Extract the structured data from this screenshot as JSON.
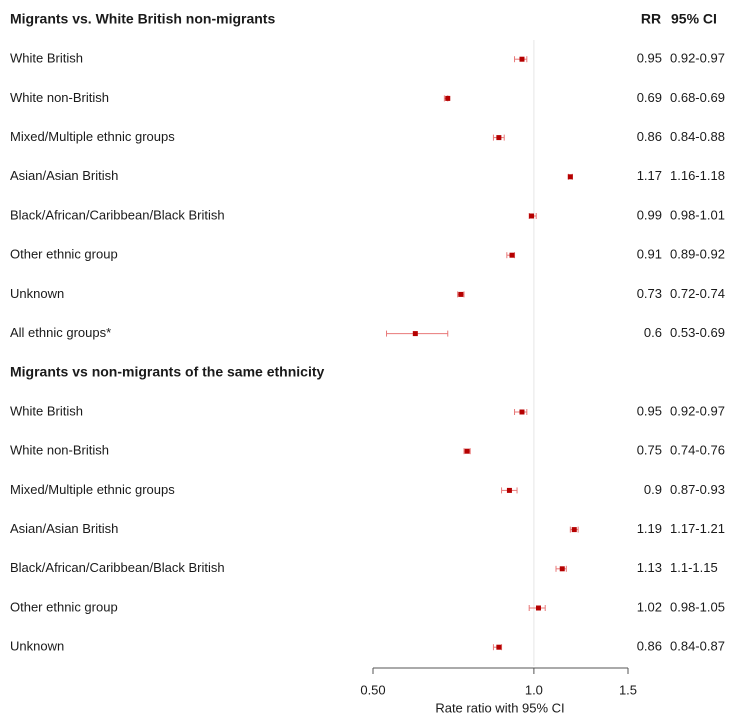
{
  "chart_data": {
    "type": "forest",
    "column_headers": [
      "RR",
      "95% CI"
    ],
    "groups": [
      {
        "title": "Migrants vs. White British non-migrants",
        "categories": [
          "White British",
          "White non-British",
          "Mixed/Multiple ethnic groups",
          "Asian/Asian British",
          "Black/African/Caribbean/Black British",
          "Other ethnic group",
          "Unknown",
          "All ethnic groups*"
        ],
        "values": [
          0.95,
          0.69,
          0.86,
          1.17,
          0.99,
          0.91,
          0.73,
          0.6
        ],
        "lower": [
          0.92,
          0.68,
          0.84,
          1.16,
          0.98,
          0.89,
          0.72,
          0.53
        ],
        "upper": [
          0.97,
          0.69,
          0.88,
          1.18,
          1.01,
          0.92,
          0.74,
          0.69
        ],
        "ci_labels": [
          "0.92-0.97",
          "0.68-0.69",
          "0.84-0.88",
          "1.16-1.18",
          "0.98-1.01",
          "0.89-0.92",
          "0.72-0.74",
          "0.53-0.69"
        ]
      },
      {
        "title": "Migrants vs non-migrants of the same ethnicity",
        "categories": [
          "White British",
          "White non-British",
          "Mixed/Multiple ethnic groups",
          "Asian/Asian British",
          "Black/African/Caribbean/Black British",
          "Other ethnic group",
          "Unknown"
        ],
        "values": [
          0.95,
          0.75,
          0.9,
          1.19,
          1.13,
          1.02,
          0.86
        ],
        "lower": [
          0.92,
          0.74,
          0.87,
          1.17,
          1.1,
          0.98,
          0.84
        ],
        "upper": [
          0.97,
          0.76,
          0.93,
          1.21,
          1.15,
          1.05,
          0.87
        ],
        "ci_labels": [
          "0.92-0.97",
          "0.74-0.76",
          "0.87-0.93",
          "1.17-1.21",
          "1.1-1.15",
          "0.98-1.05",
          "0.84-0.87"
        ]
      }
    ],
    "xlabel": "Rate ratio with 95% CI",
    "xlim": [
      0.5,
      1.5
    ],
    "xticks": [
      {
        "value": 0.5,
        "label": "0.50"
      },
      {
        "value": 1,
        "label": "1.0"
      },
      1.5
    ],
    "log_x": true,
    "reference_line": 1,
    "color": "#b50000",
    "ci_color": "#e87878"
  }
}
